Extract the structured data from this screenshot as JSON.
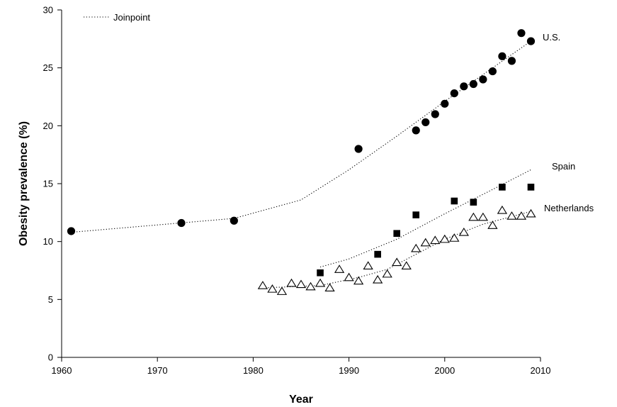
{
  "chart_data": {
    "type": "scatter",
    "title": "",
    "xlabel": "Year",
    "ylabel": "Obesity prevalence (%)",
    "xlim": [
      1960,
      2010
    ],
    "ylim": [
      0,
      30
    ],
    "xticks": [
      1960,
      1970,
      1980,
      1990,
      2000,
      2010
    ],
    "yticks": [
      0,
      5,
      10,
      15,
      20,
      25,
      30
    ],
    "grid": false,
    "legend": {
      "position": "top-left",
      "entries": [
        {
          "label": "Joinpoint",
          "style": "dotted-line"
        }
      ]
    },
    "series": [
      {
        "name": "U.S.",
        "marker": "filled-circle",
        "color": "#000000",
        "points": [
          [
            1961,
            10.9
          ],
          [
            1972.5,
            11.6
          ],
          [
            1978,
            11.8
          ],
          [
            1991,
            18.0
          ],
          [
            1997,
            19.6
          ],
          [
            1998,
            20.3
          ],
          [
            1999,
            21.0
          ],
          [
            2000,
            21.9
          ],
          [
            2001,
            22.8
          ],
          [
            2002,
            23.4
          ],
          [
            2003,
            23.6
          ],
          [
            2004,
            24.0
          ],
          [
            2005,
            24.7
          ],
          [
            2006,
            26.0
          ],
          [
            2007,
            25.6
          ],
          [
            2008,
            28.0
          ],
          [
            2009,
            27.3
          ]
        ],
        "joinpoint": [
          [
            1961,
            10.8
          ],
          [
            1978,
            12.0
          ],
          [
            1985,
            13.6
          ],
          [
            1990,
            16.2
          ],
          [
            1995,
            19.1
          ],
          [
            2000,
            22.1
          ],
          [
            2005,
            25.0
          ],
          [
            2009,
            27.3
          ]
        ]
      },
      {
        "name": "Spain",
        "marker": "filled-square",
        "color": "#000000",
        "points": [
          [
            1987,
            7.3
          ],
          [
            1993,
            8.9
          ],
          [
            1995,
            10.7
          ],
          [
            1997,
            12.3
          ],
          [
            2001,
            13.5
          ],
          [
            2003,
            13.4
          ],
          [
            2006,
            14.7
          ],
          [
            2009,
            14.7
          ]
        ],
        "joinpoint": [
          [
            1987,
            7.8
          ],
          [
            1990,
            8.5
          ],
          [
            1995,
            10.2
          ],
          [
            2000,
            12.4
          ],
          [
            2005,
            14.5
          ],
          [
            2009,
            16.2
          ]
        ]
      },
      {
        "name": "Netherlands",
        "marker": "open-triangle",
        "color": "#000000",
        "points": [
          [
            1981,
            6.2
          ],
          [
            1982,
            5.9
          ],
          [
            1983,
            5.7
          ],
          [
            1984,
            6.4
          ],
          [
            1985,
            6.3
          ],
          [
            1986,
            6.1
          ],
          [
            1987,
            6.4
          ],
          [
            1988,
            6.0
          ],
          [
            1989,
            7.6
          ],
          [
            1990,
            6.9
          ],
          [
            1991,
            6.6
          ],
          [
            1992,
            7.9
          ],
          [
            1993,
            6.7
          ],
          [
            1994,
            7.2
          ],
          [
            1995,
            8.2
          ],
          [
            1996,
            7.9
          ],
          [
            1997,
            9.4
          ],
          [
            1998,
            9.9
          ],
          [
            1999,
            10.1
          ],
          [
            2000,
            10.2
          ],
          [
            2001,
            10.3
          ],
          [
            2002,
            10.8
          ],
          [
            2003,
            12.1
          ],
          [
            2004,
            12.1
          ],
          [
            2005,
            11.4
          ],
          [
            2006,
            12.7
          ],
          [
            2007,
            12.2
          ],
          [
            2008,
            12.2
          ],
          [
            2009,
            12.4
          ]
        ],
        "joinpoint": [
          [
            1981,
            6.0
          ],
          [
            1987,
            6.2
          ],
          [
            1991,
            6.9
          ],
          [
            1994,
            7.6
          ],
          [
            1997,
            8.9
          ],
          [
            2000,
            10.2
          ],
          [
            2004,
            11.5
          ],
          [
            2009,
            12.6
          ]
        ]
      }
    ]
  }
}
